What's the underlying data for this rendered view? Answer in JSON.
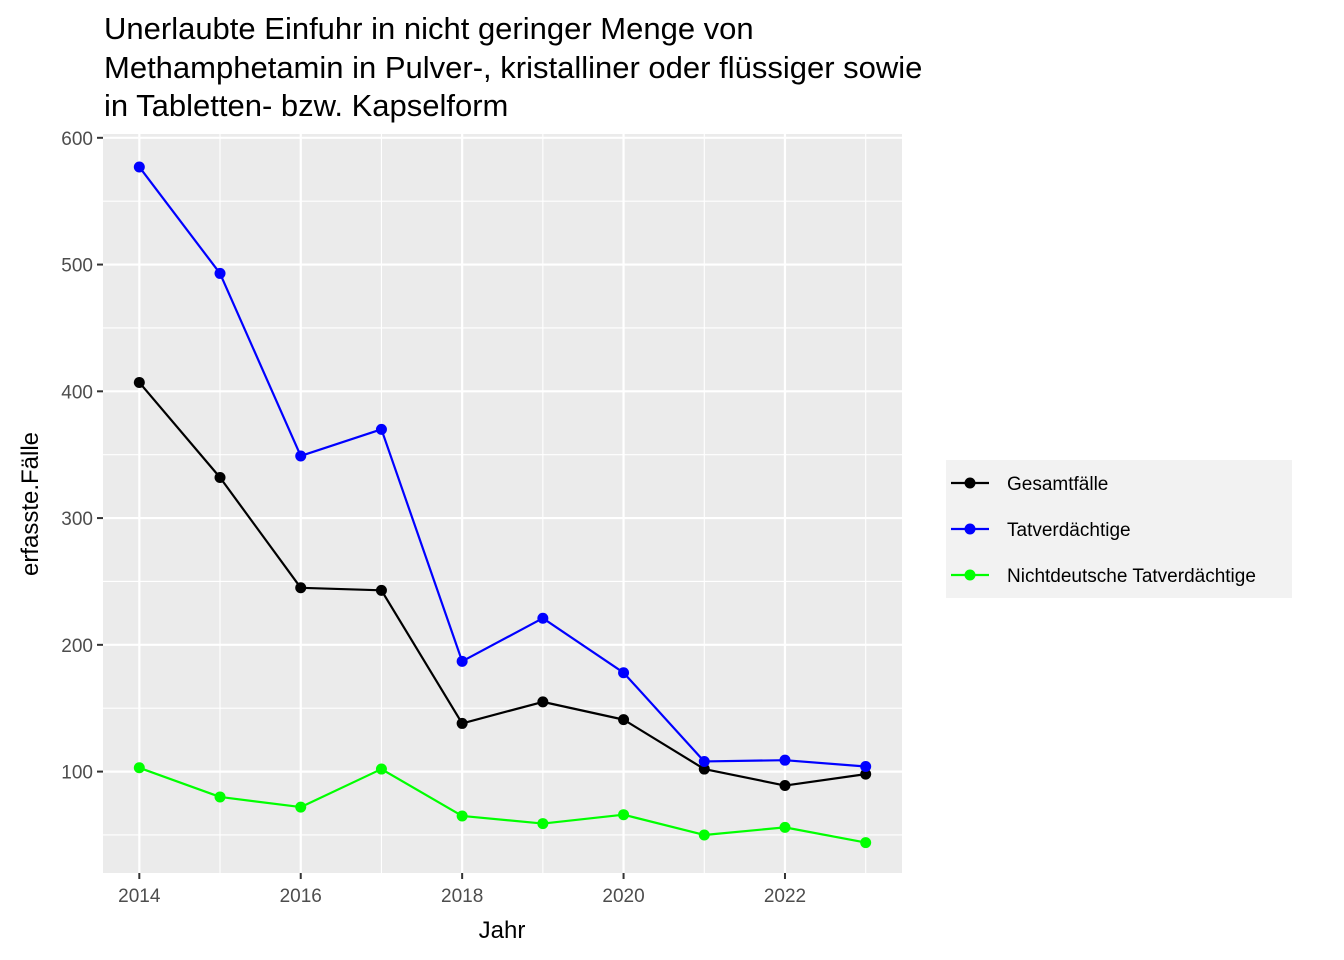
{
  "chart_data": {
    "type": "line",
    "title": "Unerlaubte Einfuhr in nicht geringer Menge von Methamphetamin in Pulver-, kristalliner oder flüssiger sowie in Tabletten- bzw. Kapselform",
    "title_lines": [
      "Unerlaubte Einfuhr in nicht geringer Menge von",
      "Methamphetamin in Pulver-, kristalliner oder flüssiger sowie",
      "in Tabletten- bzw. Kapselform"
    ],
    "xlabel": "Jahr",
    "ylabel": "erfasste.Fälle",
    "x": [
      2014,
      2015,
      2016,
      2017,
      2018,
      2019,
      2020,
      2021,
      2022,
      2023
    ],
    "xlim": [
      2013.55,
      2023.45
    ],
    "ylim": [
      20,
      603
    ],
    "x_ticks": [
      2014,
      2016,
      2018,
      2020,
      2022
    ],
    "y_ticks": [
      100,
      200,
      300,
      400,
      500,
      600
    ],
    "grid": true,
    "legend_position": "right",
    "series": [
      {
        "name": "Gesamtfälle",
        "color": "#000000",
        "values": [
          407,
          332,
          245,
          243,
          138,
          155,
          141,
          102,
          89,
          98
        ]
      },
      {
        "name": "Tatverdächtige",
        "color": "#0000ff",
        "values": [
          577,
          493,
          349,
          370,
          187,
          221,
          178,
          108,
          109,
          104
        ]
      },
      {
        "name": "Nichtdeutsche Tatverdächtige",
        "color": "#00ff00",
        "values": [
          103,
          80,
          72,
          102,
          65,
          59,
          66,
          50,
          56,
          44
        ]
      }
    ]
  }
}
